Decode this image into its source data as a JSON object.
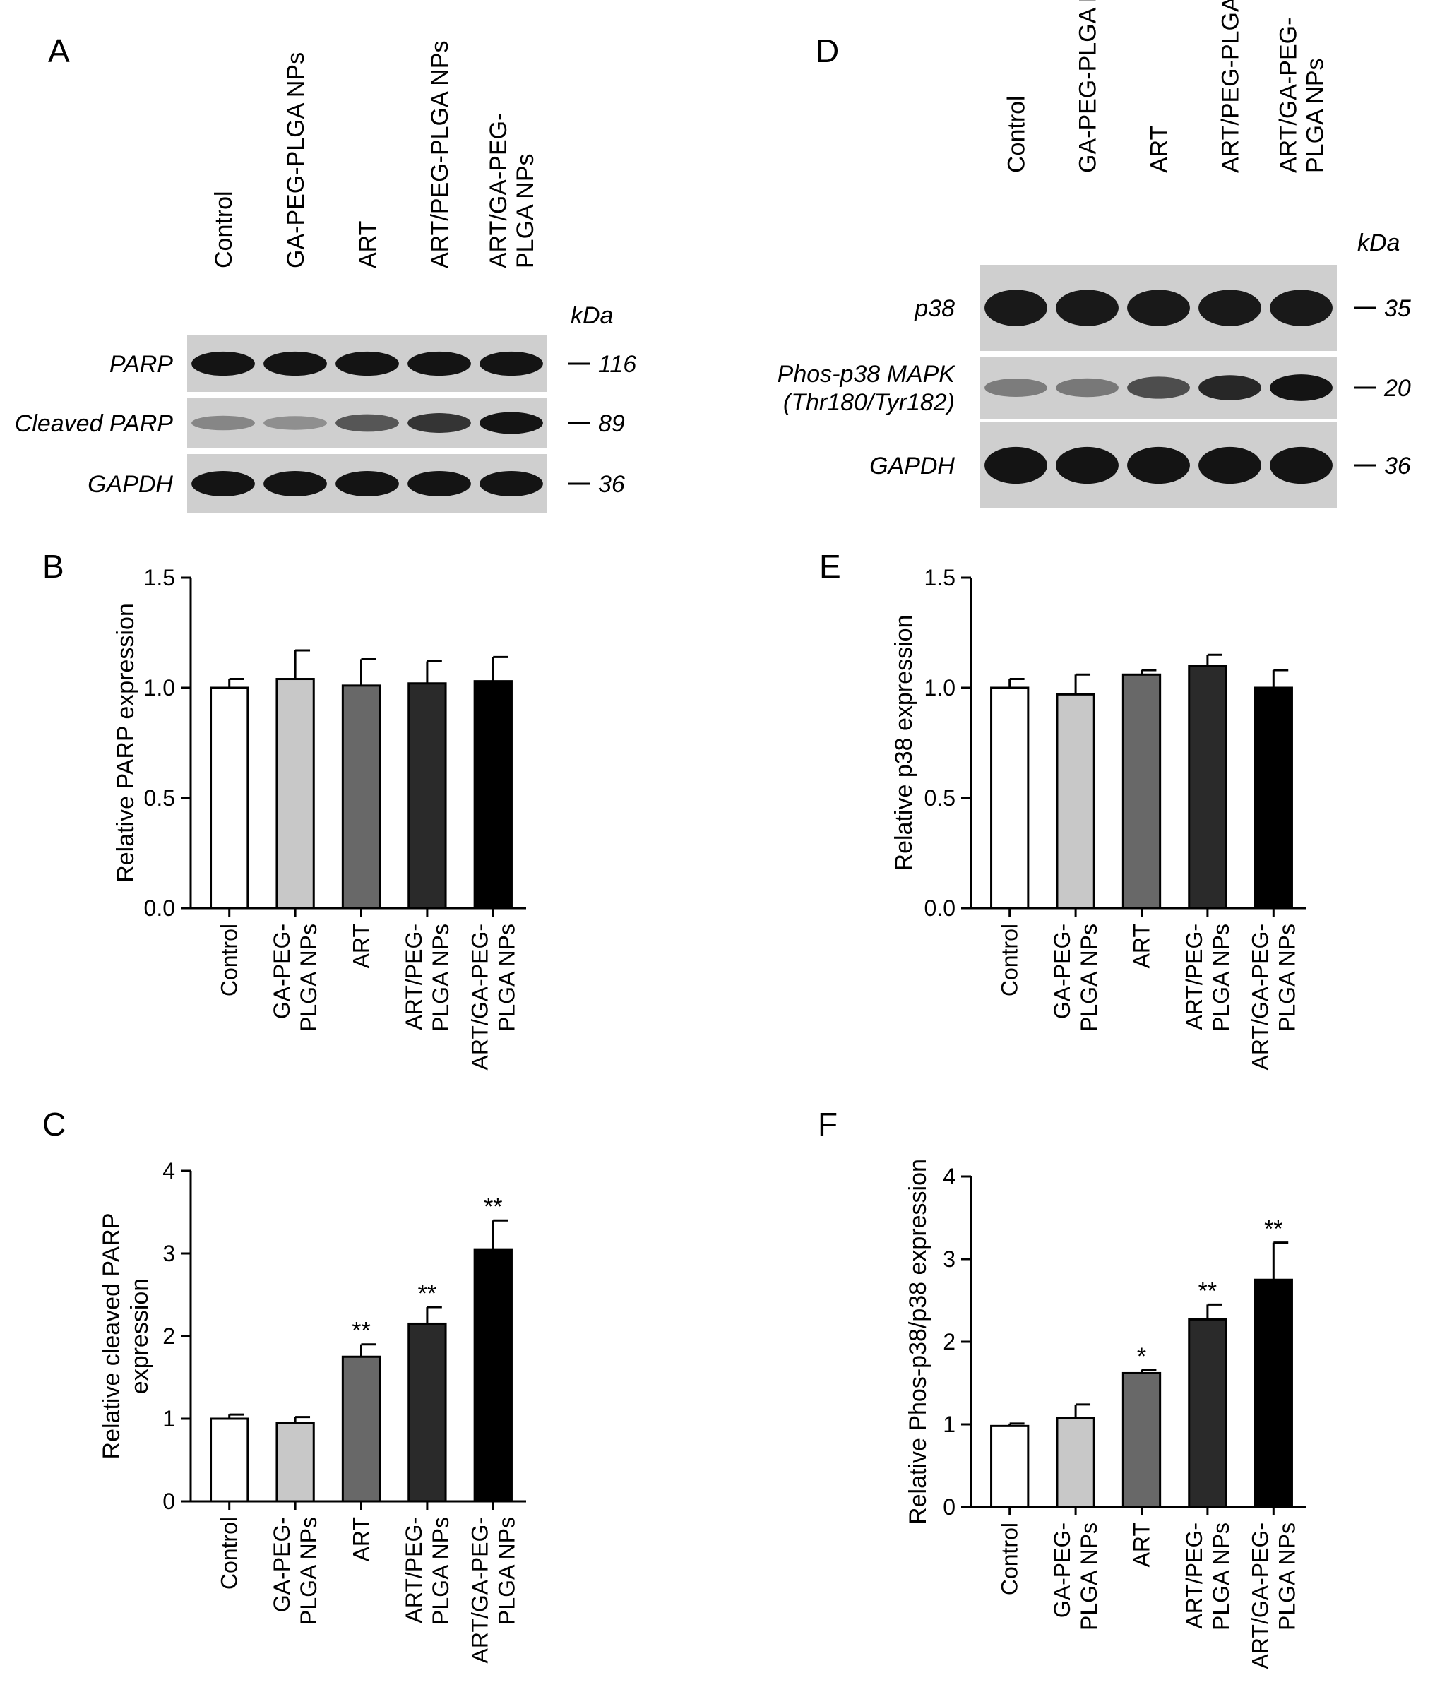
{
  "panels": {
    "A": "A",
    "B": "B",
    "C": "C",
    "D": "D",
    "E": "E",
    "F": "F"
  },
  "lanes": [
    "Control",
    "GA-PEG-PLGA NPs",
    "ART",
    "ART/PEG-PLGA NPs",
    "ART/GA-PEG-PLGA NPs"
  ],
  "lane_label_lines": [
    [
      "Control"
    ],
    [
      "GA-PEG-PLGA NPs"
    ],
    [
      "ART"
    ],
    [
      "ART/PEG-PLGA NPs"
    ],
    [
      "ART/GA-PEG-",
      "PLGA NPs"
    ]
  ],
  "kda_label": "kDa",
  "blot_A": {
    "rows": [
      {
        "label_lines": [
          "PARP"
        ],
        "kda": "116",
        "intensities": [
          0.95,
          0.95,
          0.95,
          0.95,
          0.95
        ]
      },
      {
        "label_lines": [
          "Cleaved PARP"
        ],
        "kda": "89",
        "intensities": [
          0.35,
          0.3,
          0.6,
          0.78,
          0.95
        ]
      },
      {
        "label_lines": [
          "GAPDH"
        ],
        "kda": "36",
        "intensities": [
          0.95,
          0.95,
          0.95,
          0.95,
          0.95
        ]
      }
    ]
  },
  "blot_D": {
    "rows": [
      {
        "label_lines": [
          "p38"
        ],
        "kda": "35",
        "intensities": [
          0.92,
          0.92,
          0.92,
          0.92,
          0.92
        ]
      },
      {
        "label_lines": [
          "Phos-p38 MAPK",
          "(Thr180/Tyr182)"
        ],
        "kda": "20",
        "intensities": [
          0.4,
          0.42,
          0.65,
          0.85,
          0.95
        ]
      },
      {
        "label_lines": [
          "GAPDH"
        ],
        "kda": "36",
        "intensities": [
          0.95,
          0.95,
          0.95,
          0.95,
          0.95
        ]
      }
    ]
  },
  "category_label_lines": [
    [
      "Control"
    ],
    [
      "GA-PEG-",
      "PLGA NPs"
    ],
    [
      "ART"
    ],
    [
      "ART/PEG-",
      "PLGA NPs"
    ],
    [
      "ART/GA-PEG-",
      "PLGA NPs"
    ]
  ],
  "bar_colors": [
    "#ffffff",
    "#c8c8c8",
    "#686868",
    "#2a2a2a",
    "#000000"
  ],
  "chart_data": [
    {
      "panel": "B",
      "type": "bar",
      "categories": [
        "Control",
        "GA-PEG-PLGA NPs",
        "ART",
        "ART/PEG-PLGA NPs",
        "ART/GA-PEG-PLGA NPs"
      ],
      "values": [
        1.0,
        1.04,
        1.01,
        1.02,
        1.03
      ],
      "errors": [
        0.04,
        0.13,
        0.12,
        0.1,
        0.11
      ],
      "significance": [
        "",
        "",
        "",
        "",
        ""
      ],
      "ylabel_lines": [
        "Relative PARP expression"
      ],
      "ylim": [
        0,
        1.5
      ],
      "yticks": [
        0,
        0.5,
        1.0,
        1.5
      ],
      "ytick_labels": [
        "0.0",
        "0.5",
        "1.0",
        "1.5"
      ]
    },
    {
      "panel": "C",
      "type": "bar",
      "categories": [
        "Control",
        "GA-PEG-PLGA NPs",
        "ART",
        "ART/PEG-PLGA NPs",
        "ART/GA-PEG-PLGA NPs"
      ],
      "values": [
        1.0,
        0.95,
        1.75,
        2.15,
        3.05
      ],
      "errors": [
        0.05,
        0.07,
        0.15,
        0.2,
        0.35
      ],
      "significance": [
        "",
        "",
        "**",
        "**",
        "**"
      ],
      "ylabel_lines": [
        "Relative cleaved PARP",
        "expression"
      ],
      "ylim": [
        0,
        4
      ],
      "yticks": [
        0,
        1,
        2,
        3,
        4
      ],
      "ytick_labels": [
        "0",
        "1",
        "2",
        "3",
        "4"
      ]
    },
    {
      "panel": "E",
      "type": "bar",
      "categories": [
        "Control",
        "GA-PEG-PLGA NPs",
        "ART",
        "ART/PEG-PLGA NPs",
        "ART/GA-PEG-PLGA NPs"
      ],
      "values": [
        1.0,
        0.97,
        1.06,
        1.1,
        1.0
      ],
      "errors": [
        0.04,
        0.09,
        0.02,
        0.05,
        0.08
      ],
      "significance": [
        "",
        "",
        "",
        "",
        ""
      ],
      "ylabel_lines": [
        "Relative p38 expression"
      ],
      "ylim": [
        0,
        1.5
      ],
      "yticks": [
        0,
        0.5,
        1.0,
        1.5
      ],
      "ytick_labels": [
        "0.0",
        "0.5",
        "1.0",
        "1.5"
      ]
    },
    {
      "panel": "F",
      "type": "bar",
      "categories": [
        "Control",
        "GA-PEG-PLGA NPs",
        "ART",
        "ART/PEG-PLGA NPs",
        "ART/GA-PEG-PLGA NPs"
      ],
      "values": [
        0.98,
        1.08,
        1.62,
        2.27,
        2.75
      ],
      "errors": [
        0.03,
        0.16,
        0.04,
        0.18,
        0.45
      ],
      "significance": [
        "",
        "",
        "*",
        "**",
        "**"
      ],
      "ylabel_lines": [
        "Relative Phos-p38/p38 expression"
      ],
      "ylim": [
        0,
        4
      ],
      "yticks": [
        0,
        1,
        2,
        3,
        4
      ],
      "ytick_labels": [
        "0",
        "1",
        "2",
        "3",
        "4"
      ]
    }
  ]
}
